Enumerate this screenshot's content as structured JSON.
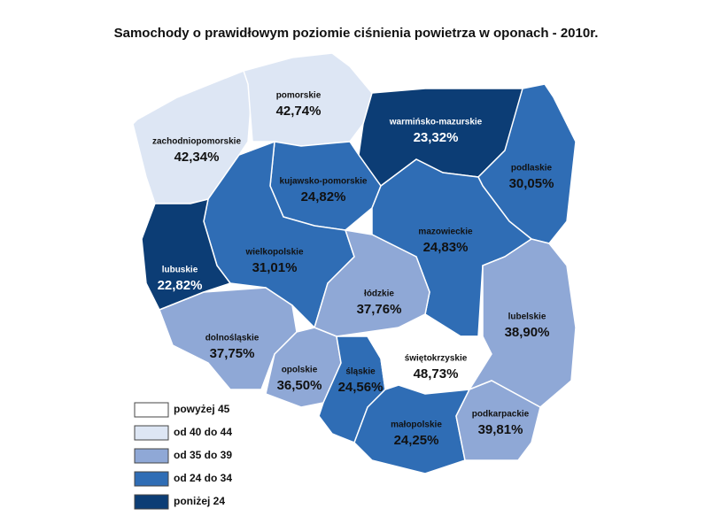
{
  "title": "Samochody o prawidłowym poziomie ciśnienia powietrza w oponach - 2010r.",
  "regions": [
    {
      "name": "zachodniopomorskie",
      "label": "42,34%",
      "color": "#dde6f4"
    },
    {
      "name": "pomorskie",
      "label": "42,74%",
      "color": "#dde6f4"
    },
    {
      "name": "warmińsko-mazurskie",
      "label": "23,32%",
      "color": "#0c3d75"
    },
    {
      "name": "podlaskie",
      "label": "30,05%",
      "color": "#2f6db5"
    },
    {
      "name": "kujawsko-pomorskie",
      "label": "24,82%",
      "color": "#2f6db5"
    },
    {
      "name": "wielkopolskie",
      "label": "31,01%",
      "color": "#2f6db5"
    },
    {
      "name": "lubuskie",
      "label": "22,82%",
      "color": "#0c3d75"
    },
    {
      "name": "mazowieckie",
      "label": "24,83%",
      "color": "#2f6db5"
    },
    {
      "name": "łódzkie",
      "label": "37,76%",
      "color": "#8fa8d6"
    },
    {
      "name": "dolnośląskie",
      "label": "37,75%",
      "color": "#8fa8d6"
    },
    {
      "name": "opolskie",
      "label": "36,50%",
      "color": "#8fa8d6"
    },
    {
      "name": "śląskie",
      "label": "24,56%",
      "color": "#2f6db5"
    },
    {
      "name": "świętokrzyskie",
      "label": "48,73%",
      "color": "#ffffff"
    },
    {
      "name": "lubelskie",
      "label": "38,90%",
      "color": "#8fa8d6"
    },
    {
      "name": "małopolskie",
      "label": "24,25%",
      "color": "#2f6db5"
    },
    {
      "name": "podkarpackie",
      "label": "39,81%",
      "color": "#8fa8d6"
    }
  ],
  "legend": [
    {
      "label": "powyżej 45",
      "color": "#ffffff"
    },
    {
      "label": "od 40 do 44",
      "color": "#dde6f4"
    },
    {
      "label": "od 35 do 39",
      "color": "#8fa8d6"
    },
    {
      "label": "od 24 do 34",
      "color": "#2f6db5"
    },
    {
      "label": "poniżej 24",
      "color": "#0c3d75"
    }
  ]
}
